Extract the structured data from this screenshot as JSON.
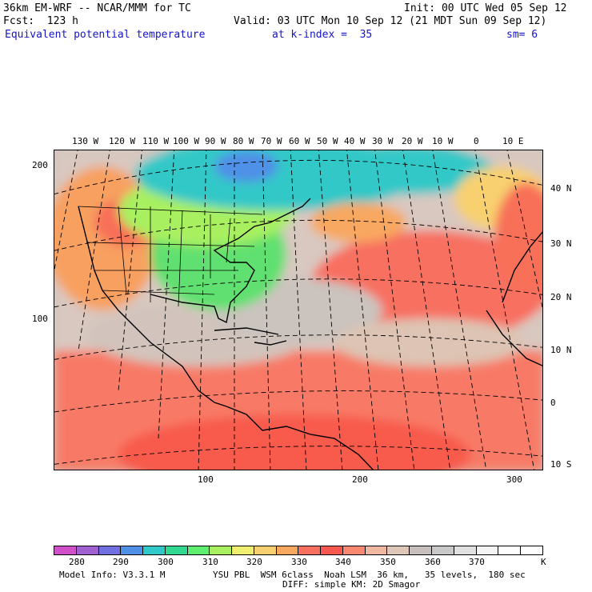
{
  "header": {
    "line1_left": "36km EM-WRF -- NCAR/MMM for TC",
    "line1_right": "Init: 00 UTC Wed 05 Sep 12",
    "line2_left": "Fcst:  123 h",
    "line2_right": "Valid: 03 UTC Mon 10 Sep 12 (21 MDT Sun 09 Sep 12)",
    "field": "Equivalent potential temperature",
    "level": "at k-index =  35",
    "smooth": "sm= 6"
  },
  "top_lon_labels": [
    "130 W",
    "120 W",
    "110 W",
    "100 W",
    "90 W",
    "80 W",
    "70 W",
    "60 W",
    "50 W",
    "40 W",
    "30 W",
    "20 W",
    "10 W",
    "0",
    "10 E"
  ],
  "right_lat_labels": [
    "40 N",
    "30 N",
    "20 N",
    "10 N",
    "0",
    "10 S"
  ],
  "left_grid_labels": [
    "200",
    "100"
  ],
  "bottom_grid_labels": [
    "100",
    "200",
    "300"
  ],
  "colorbar": {
    "labels": [
      "280",
      "290",
      "300",
      "310",
      "320",
      "330",
      "340",
      "350",
      "360",
      "370"
    ],
    "unit": "K",
    "colors": [
      "#d050c8",
      "#a060d0",
      "#7070e0",
      "#5090e8",
      "#30c8c8",
      "#30d890",
      "#60ee70",
      "#a8f060",
      "#f0f070",
      "#f8d070",
      "#f8a860",
      "#f87060",
      "#f85850",
      "#f88870",
      "#f0b8a0",
      "#e0c8b8",
      "#c8c0bc",
      "#c8c8c8",
      "#e0e0e0",
      "#f4f4f4",
      "#ffffff",
      "#ffffff"
    ]
  },
  "footer": {
    "model_info": "Model Info: V3.3.1 M",
    "physics_line1": "YSU PBL  WSM 6class  Noah LSM  36 km,   35 levels,  180 sec",
    "physics_line2": "DIFF: simple KM: 2D Smagor"
  }
}
